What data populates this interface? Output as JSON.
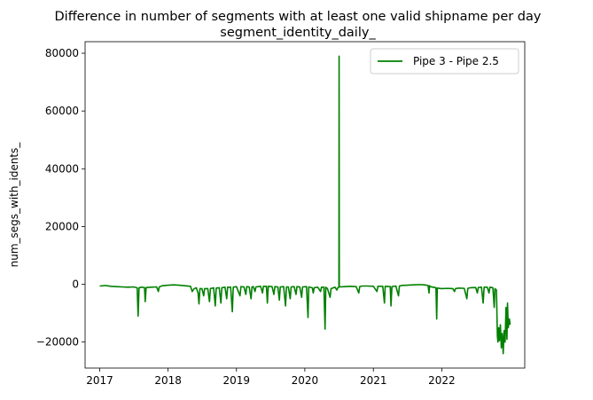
{
  "chart_data": {
    "type": "line",
    "title": "Difference in number of segments with at least one valid shipname per day",
    "subtitle": "segment_identity_daily_",
    "xlabel": "",
    "ylabel": "num_segs_with_idents_",
    "x_range": [
      "2016-10-15",
      "2023-03-20"
    ],
    "ylim": [
      -29000,
      84000
    ],
    "x_ticks": [
      "2017",
      "2018",
      "2019",
      "2020",
      "2021",
      "2022"
    ],
    "y_ticks": [
      -20000,
      0,
      20000,
      40000,
      60000,
      80000
    ],
    "y_tick_labels": [
      "−20000",
      "0",
      "20000",
      "40000",
      "60000",
      "80000"
    ],
    "grid": false,
    "legend_position": "top-right",
    "series": [
      {
        "name": "Pipe 3 - Pipe 2.5",
        "color": "#008000",
        "points": [
          [
            "2017-01-01",
            -600
          ],
          [
            "2017-02-01",
            -400
          ],
          [
            "2017-03-01",
            -700
          ],
          [
            "2017-04-01",
            -800
          ],
          [
            "2017-05-01",
            -900
          ],
          [
            "2017-06-01",
            -1000
          ],
          [
            "2017-07-01",
            -900
          ],
          [
            "2017-07-20",
            -1200
          ],
          [
            "2017-07-25",
            -11000
          ],
          [
            "2017-07-30",
            -1200
          ],
          [
            "2017-08-10",
            -1000
          ],
          [
            "2017-08-28",
            -1100
          ],
          [
            "2017-09-01",
            -6000
          ],
          [
            "2017-09-06",
            -1100
          ],
          [
            "2017-10-01",
            -1000
          ],
          [
            "2017-11-01",
            -900
          ],
          [
            "2017-11-10",
            -2500
          ],
          [
            "2017-11-15",
            -900
          ],
          [
            "2017-12-01",
            -500
          ],
          [
            "2018-01-01",
            -300
          ],
          [
            "2018-02-01",
            -200
          ],
          [
            "2018-03-01",
            -300
          ],
          [
            "2018-04-01",
            -500
          ],
          [
            "2018-05-01",
            -700
          ],
          [
            "2018-05-10",
            -2500
          ],
          [
            "2018-05-20",
            -1500
          ],
          [
            "2018-06-01",
            -1200
          ],
          [
            "2018-06-10",
            -3000
          ],
          [
            "2018-06-15",
            -6800
          ],
          [
            "2018-06-20",
            -1500
          ],
          [
            "2018-07-01",
            -1500
          ],
          [
            "2018-07-10",
            -4000
          ],
          [
            "2018-07-15",
            -1500
          ],
          [
            "2018-08-01",
            -1500
          ],
          [
            "2018-08-10",
            -6000
          ],
          [
            "2018-08-15",
            -1500
          ],
          [
            "2018-09-01",
            -1200
          ],
          [
            "2018-09-10",
            -7500
          ],
          [
            "2018-09-15",
            -1300
          ],
          [
            "2018-10-01",
            -1200
          ],
          [
            "2018-10-10",
            -6500
          ],
          [
            "2018-10-15",
            -1200
          ],
          [
            "2018-11-01",
            -1000
          ],
          [
            "2018-11-10",
            -5000
          ],
          [
            "2018-11-15",
            -1000
          ],
          [
            "2018-12-01",
            -1000
          ],
          [
            "2018-12-10",
            -9500
          ],
          [
            "2018-12-15",
            -1000
          ],
          [
            "2019-01-01",
            -800
          ],
          [
            "2019-01-20",
            -4000
          ],
          [
            "2019-01-25",
            -800
          ],
          [
            "2019-02-10",
            -900
          ],
          [
            "2019-02-20",
            -3500
          ],
          [
            "2019-02-25",
            -800
          ],
          [
            "2019-03-10",
            -900
          ],
          [
            "2019-03-20",
            -5000
          ],
          [
            "2019-03-25",
            -900
          ],
          [
            "2019-04-01",
            -800
          ],
          [
            "2019-04-10",
            -2500
          ],
          [
            "2019-04-15",
            -900
          ],
          [
            "2019-05-10",
            -700
          ],
          [
            "2019-05-20",
            -3000
          ],
          [
            "2019-05-25",
            -700
          ],
          [
            "2019-06-10",
            -700
          ],
          [
            "2019-06-15",
            -6500
          ],
          [
            "2019-06-20",
            -700
          ],
          [
            "2019-07-10",
            -800
          ],
          [
            "2019-07-20",
            -3500
          ],
          [
            "2019-07-25",
            -800
          ],
          [
            "2019-08-10",
            -900
          ],
          [
            "2019-08-18",
            -5500
          ],
          [
            "2019-08-23",
            -900
          ],
          [
            "2019-09-10",
            -800
          ],
          [
            "2019-09-20",
            -7500
          ],
          [
            "2019-09-25",
            -900
          ],
          [
            "2019-10-05",
            -900
          ],
          [
            "2019-10-15",
            -5000
          ],
          [
            "2019-10-20",
            -900
          ],
          [
            "2019-11-05",
            -800
          ],
          [
            "2019-11-15",
            -3500
          ],
          [
            "2019-11-20",
            -800
          ],
          [
            "2019-12-05",
            -900
          ],
          [
            "2019-12-15",
            -4500
          ],
          [
            "2019-12-20",
            -900
          ],
          [
            "2020-01-10",
            -800
          ],
          [
            "2020-01-18",
            -11500
          ],
          [
            "2020-01-22",
            -900
          ],
          [
            "2020-02-10",
            -1200
          ],
          [
            "2020-02-15",
            -3000
          ],
          [
            "2020-02-20",
            -1200
          ],
          [
            "2020-03-10",
            -1000
          ],
          [
            "2020-03-25",
            -2500
          ],
          [
            "2020-03-30",
            -1000
          ],
          [
            "2020-04-12",
            -1000
          ],
          [
            "2020-04-18",
            -15500
          ],
          [
            "2020-04-22",
            -1000
          ],
          [
            "2020-05-01",
            -1500
          ],
          [
            "2020-05-15",
            -4500
          ],
          [
            "2020-05-20",
            -1500
          ],
          [
            "2020-06-10",
            -1000
          ],
          [
            "2020-06-20",
            -2000
          ],
          [
            "2020-06-25",
            -1200
          ],
          [
            "2020-07-01",
            -1000
          ],
          [
            "2020-07-02",
            79000
          ],
          [
            "2020-07-03",
            -900
          ],
          [
            "2020-08-01",
            -800
          ],
          [
            "2020-09-01",
            -700
          ],
          [
            "2020-10-01",
            -800
          ],
          [
            "2020-10-15",
            -3000
          ],
          [
            "2020-10-20",
            -800
          ],
          [
            "2020-11-01",
            -600
          ],
          [
            "2020-12-01",
            -600
          ],
          [
            "2021-01-01",
            -700
          ],
          [
            "2021-01-20",
            -2500
          ],
          [
            "2021-01-25",
            -700
          ],
          [
            "2021-02-20",
            -700
          ],
          [
            "2021-03-01",
            -6500
          ],
          [
            "2021-03-05",
            -700
          ],
          [
            "2021-04-01",
            -800
          ],
          [
            "2021-04-05",
            -7500
          ],
          [
            "2021-04-10",
            -800
          ],
          [
            "2021-05-01",
            -600
          ],
          [
            "2021-05-15",
            -4000
          ],
          [
            "2021-05-20",
            -600
          ],
          [
            "2021-06-01",
            -400
          ],
          [
            "2021-07-01",
            -300
          ],
          [
            "2021-08-01",
            -200
          ],
          [
            "2021-09-01",
            -100
          ],
          [
            "2021-10-01",
            -200
          ],
          [
            "2021-10-20",
            -400
          ],
          [
            "2021-10-25",
            -3000
          ],
          [
            "2021-10-28",
            -500
          ],
          [
            "2021-11-01",
            -800
          ],
          [
            "2021-12-01",
            -1200
          ],
          [
            "2021-12-05",
            -12000
          ],
          [
            "2021-12-08",
            -1300
          ],
          [
            "2022-01-01",
            -1500
          ],
          [
            "2022-02-01",
            -1400
          ],
          [
            "2022-03-01",
            -1500
          ],
          [
            "2022-03-10",
            -2500
          ],
          [
            "2022-03-15",
            -1500
          ],
          [
            "2022-04-01",
            -1300
          ],
          [
            "2022-05-01",
            -1400
          ],
          [
            "2022-05-15",
            -5000
          ],
          [
            "2022-05-20",
            -1400
          ],
          [
            "2022-06-01",
            -1200
          ],
          [
            "2022-07-01",
            -1100
          ],
          [
            "2022-07-10",
            -3000
          ],
          [
            "2022-07-15",
            -1100
          ],
          [
            "2022-08-01",
            -1000
          ],
          [
            "2022-08-10",
            -6500
          ],
          [
            "2022-08-15",
            -1000
          ],
          [
            "2022-09-01",
            -1000
          ],
          [
            "2022-09-10",
            -3000
          ],
          [
            "2022-09-15",
            -1000
          ],
          [
            "2022-10-01",
            -1200
          ],
          [
            "2022-10-08",
            -8000
          ],
          [
            "2022-10-12",
            -1500
          ],
          [
            "2022-10-20",
            -2000
          ],
          [
            "2022-10-25",
            -18000
          ],
          [
            "2022-10-28",
            -20000
          ],
          [
            "2022-11-01",
            -15000
          ],
          [
            "2022-11-05",
            -19500
          ],
          [
            "2022-11-10",
            -14000
          ],
          [
            "2022-11-15",
            -22000
          ],
          [
            "2022-11-20",
            -17000
          ],
          [
            "2022-11-25",
            -24000
          ],
          [
            "2022-11-30",
            -16000
          ],
          [
            "2022-12-05",
            -20000
          ],
          [
            "2022-12-10",
            -8000
          ],
          [
            "2022-12-15",
            -19000
          ],
          [
            "2022-12-18",
            -6500
          ],
          [
            "2022-12-22",
            -15000
          ],
          [
            "2022-12-28",
            -12000
          ],
          [
            "2023-01-01",
            -14000
          ]
        ]
      }
    ]
  }
}
